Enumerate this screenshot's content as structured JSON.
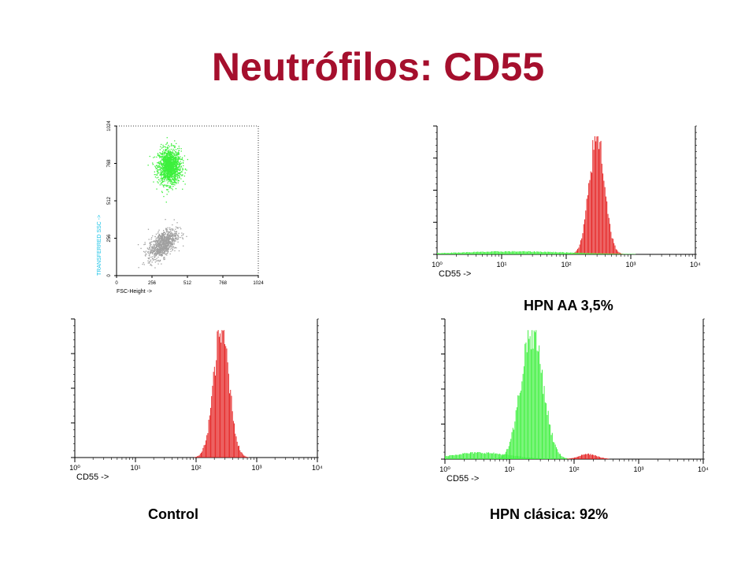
{
  "slide": {
    "title": "Neutrófilos: CD55",
    "captions": {
      "hpn_aa": "HPN AA 3,5%",
      "control": "Control",
      "hpn_clasica": "HPN clásica: 92%"
    }
  },
  "colors": {
    "title": "#a50f2d",
    "red": "#e41b1b",
    "green": "#3cf03c",
    "gray": "#a0a0a0",
    "cyan": "#13c1e6"
  },
  "chart_data": [
    {
      "id": "scatter",
      "type": "scatter",
      "xlabel": "FSC-Height ->",
      "ylabel": "TRANSFERRED SSC ->",
      "x_ticks": [
        "0",
        "256",
        "512",
        "768",
        "1024"
      ],
      "y_ticks": [
        "0",
        "256",
        "512",
        "768",
        "1024"
      ],
      "xlim": [
        0,
        1024
      ],
      "ylim": [
        0,
        1024
      ],
      "populations": [
        {
          "name": "",
          "color": "green",
          "center": [
            380,
            750
          ],
          "spread": [
            75,
            110
          ]
        },
        {
          "name": "",
          "color": "gray",
          "center": [
            330,
            220
          ],
          "spread": [
            95,
            80
          ]
        }
      ]
    },
    {
      "id": "hpn_aa",
      "type": "histogram",
      "xlabel": "CD55 ->",
      "x_scale": "log",
      "x_ticks": [
        "10⁰",
        "10¹",
        "10²",
        "10³",
        "10⁴"
      ],
      "xlim": [
        1,
        10000
      ],
      "peaks": [
        {
          "color": "red",
          "center_log": 2.48,
          "sd_log": 0.12,
          "height": 1.0
        },
        {
          "color": "green",
          "center_log": 1.2,
          "sd_log": 0.9,
          "height": 0.025
        }
      ]
    },
    {
      "id": "control",
      "type": "histogram",
      "xlabel": "CD55 ->",
      "x_scale": "log",
      "x_ticks": [
        "10⁰",
        "10¹",
        "10²",
        "10³",
        "10⁴"
      ],
      "xlim": [
        1,
        10000
      ],
      "peaks": [
        {
          "color": "red",
          "center_log": 2.42,
          "sd_log": 0.13,
          "height": 1.0
        }
      ]
    },
    {
      "id": "hpn_clasica",
      "type": "histogram",
      "xlabel": "CD55 ->",
      "x_scale": "log",
      "x_ticks": [
        "10⁰",
        "10¹",
        "10²",
        "10³",
        "10⁴"
      ],
      "xlim": [
        1,
        10000
      ],
      "peaks": [
        {
          "color": "green",
          "center_log": 1.35,
          "sd_log": 0.17,
          "height": 1.0
        },
        {
          "color": "green",
          "center_log": 0.55,
          "sd_log": 0.45,
          "height": 0.05
        },
        {
          "color": "red",
          "center_log": 2.22,
          "sd_log": 0.14,
          "height": 0.04
        }
      ]
    }
  ]
}
